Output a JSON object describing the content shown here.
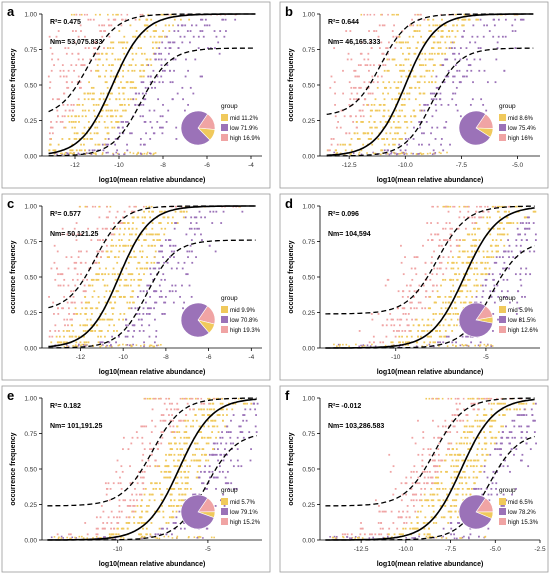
{
  "figure": {
    "y_axis_label": "occurrence frequency",
    "x_axis_label": "log10(mean relative abundance)",
    "legend_title": "group"
  },
  "colors": {
    "mid": "#f0c95c",
    "low": "#9b72b8",
    "high": "#f0a4a4",
    "fit": "#000000",
    "ci": "#000000"
  },
  "chart_data": [
    {
      "panel": "a",
      "type": "scatter",
      "r2_text": "R²= 0.475",
      "nm_text": "Nm= 53,075.833",
      "xlim": [
        -13.5,
        -3.5
      ],
      "xticks": [
        -12,
        -10,
        -8,
        -6,
        -4
      ],
      "ylim": [
        0,
        1
      ],
      "yticks": [
        0.0,
        0.25,
        0.5,
        0.75,
        1.0
      ],
      "fit_midpoint": -10.3,
      "fit_slope": 1.4,
      "ci_lower_shift": 1.3,
      "ci_upper_shift": -1.1,
      "upper_ci_floor": 0.27,
      "lower_ci_cap": 0.76,
      "groups": [
        {
          "name": "mid",
          "label": "mid 11.2%",
          "pct": 11.2
        },
        {
          "name": "low",
          "label": "low 71.9%",
          "pct": 71.9
        },
        {
          "name": "high",
          "label": "high 16.9%",
          "pct": 16.9
        }
      ]
    },
    {
      "panel": "b",
      "type": "scatter",
      "r2_text": "R²= 0.644",
      "nm_text": "Nm= 46,165.333",
      "xlim": [
        -13.8,
        -4
      ],
      "xticks": [
        -12.5,
        -10.0,
        -7.5,
        -5.0
      ],
      "ylim": [
        0,
        1
      ],
      "yticks": [
        0.0,
        0.25,
        0.5,
        0.75,
        1.0
      ],
      "fit_midpoint": -10.0,
      "fit_slope": 1.5,
      "ci_lower_shift": 1.2,
      "ci_upper_shift": -1.1,
      "upper_ci_floor": 0.28,
      "lower_ci_cap": 0.76,
      "groups": [
        {
          "name": "mid",
          "label": "mid 8.6%",
          "pct": 8.6
        },
        {
          "name": "low",
          "label": "low 75.4%",
          "pct": 75.4
        },
        {
          "name": "high",
          "label": "high 16%",
          "pct": 16.0
        }
      ]
    },
    {
      "panel": "c",
      "type": "scatter",
      "r2_text": "R²= 0.577",
      "nm_text": "Nm= 50,121.25",
      "xlim": [
        -13.8,
        -3.5
      ],
      "xticks": [
        -12,
        -10,
        -8,
        -6,
        -4
      ],
      "ylim": [
        0,
        1
      ],
      "yticks": [
        0.0,
        0.25,
        0.5,
        0.75,
        1.0
      ],
      "fit_midpoint": -10.2,
      "fit_slope": 1.4,
      "ci_lower_shift": 1.3,
      "ci_upper_shift": -1.1,
      "upper_ci_floor": 0.26,
      "lower_ci_cap": 0.76,
      "groups": [
        {
          "name": "mid",
          "label": "mid 9.9%",
          "pct": 9.9
        },
        {
          "name": "low",
          "label": "low 70.8%",
          "pct": 70.8
        },
        {
          "name": "high",
          "label": "high 19.3%",
          "pct": 19.3
        }
      ]
    },
    {
      "panel": "d",
      "type": "scatter",
      "r2_text": "R²= 0.096",
      "nm_text": "Nm= 104,594",
      "xlim": [
        -14.2,
        -2
      ],
      "xticks": [
        -10,
        -5
      ],
      "ylim": [
        0,
        1
      ],
      "yticks": [
        0.0,
        0.25,
        0.5,
        0.75,
        1.0
      ],
      "fit_midpoint": -6.2,
      "fit_slope": 1.1,
      "ci_lower_shift": 1.5,
      "ci_upper_shift": -1.5,
      "upper_ci_floor": 0.24,
      "lower_ci_cap": 0.76,
      "groups": [
        {
          "name": "mid",
          "label": "mid 5.9%",
          "pct": 5.9
        },
        {
          "name": "low",
          "label": "low 81.5%",
          "pct": 81.5
        },
        {
          "name": "high",
          "label": "high 12.6%",
          "pct": 12.6
        }
      ]
    },
    {
      "panel": "e",
      "type": "scatter",
      "r2_text": "R²= 0.182",
      "nm_text": "Nm= 101,191.25",
      "xlim": [
        -14.2,
        -2
      ],
      "xticks": [
        -10,
        -5
      ],
      "ylim": [
        0,
        1
      ],
      "yticks": [
        0.0,
        0.25,
        0.5,
        0.75,
        1.0
      ],
      "fit_midpoint": -6.6,
      "fit_slope": 1.1,
      "ci_lower_shift": 1.5,
      "ci_upper_shift": -1.5,
      "upper_ci_floor": 0.24,
      "lower_ci_cap": 0.76,
      "groups": [
        {
          "name": "mid",
          "label": "mid 5.7%",
          "pct": 5.7
        },
        {
          "name": "low",
          "label": "low 79.1%",
          "pct": 79.1
        },
        {
          "name": "high",
          "label": "high 15.2%",
          "pct": 15.2
        }
      ]
    },
    {
      "panel": "f",
      "type": "scatter",
      "r2_text": "R²= -0.012",
      "nm_text": "Nm= 103,286.583",
      "xlim": [
        -14.8,
        -2.5
      ],
      "xticks": [
        -12.5,
        -10.0,
        -7.5,
        -5.0,
        -2.5
      ],
      "ylim": [
        0,
        1
      ],
      "yticks": [
        0.0,
        0.25,
        0.5,
        0.75,
        1.0
      ],
      "fit_midpoint": -6.9,
      "fit_slope": 1.1,
      "ci_lower_shift": 1.5,
      "ci_upper_shift": -1.5,
      "upper_ci_floor": 0.24,
      "lower_ci_cap": 0.76,
      "groups": [
        {
          "name": "mid",
          "label": "mid 6.5%",
          "pct": 6.5
        },
        {
          "name": "low",
          "label": "low 78.2%",
          "pct": 78.2
        },
        {
          "name": "high",
          "label": "high 15.3%",
          "pct": 15.3
        }
      ]
    }
  ]
}
